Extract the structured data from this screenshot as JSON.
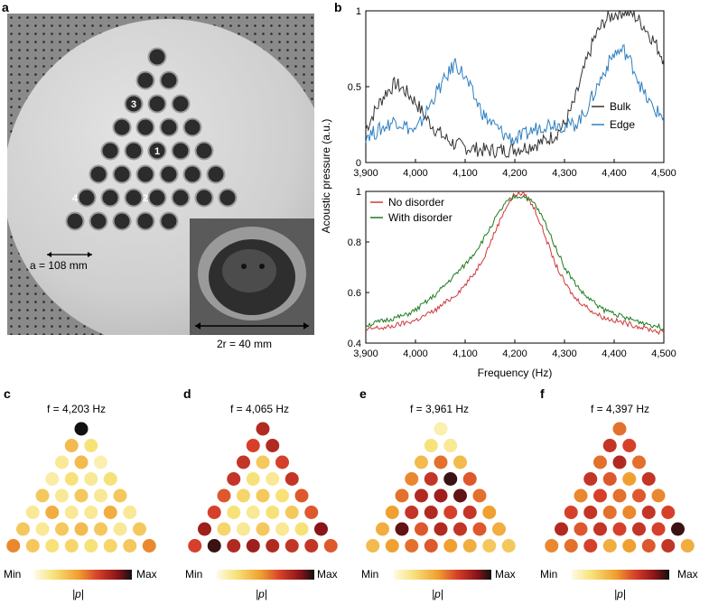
{
  "panels": {
    "a": {
      "label": "a",
      "spacing_label": "a = 108 mm",
      "diameter_label": "2r = 40 mm",
      "numbers": [
        "1",
        "2",
        "3",
        "4"
      ]
    },
    "b": {
      "label": "b"
    },
    "c": {
      "label": "c",
      "title": "f = 4,203 Hz"
    },
    "d": {
      "label": "d",
      "title": "f = 4,065 Hz"
    },
    "e": {
      "label": "e",
      "title": "f = 3,961 Hz"
    },
    "f": {
      "label": "f",
      "title": "f = 4,397 Hz"
    }
  },
  "colorbar": {
    "min": "Min",
    "max": "Max",
    "quantity": "|p|"
  },
  "colors": {
    "bulk": "#333333",
    "edge": "#2f7fc1",
    "no_disorder": "#d0383a",
    "with_disorder": "#1f7a1f"
  },
  "chart_data": [
    {
      "type": "line",
      "panel": "b-top",
      "xlabel": "",
      "ylabel": "Acoustic pressure (a.u.)",
      "xlim": [
        3900,
        4500
      ],
      "ylim": [
        0,
        1
      ],
      "xticks": [
        "3,900",
        "4,000",
        "4,100",
        "4,200",
        "4,300",
        "4,400",
        "4,500"
      ],
      "yticks": [
        "0",
        "0.5",
        "1"
      ],
      "legend_position": "right",
      "series": [
        {
          "name": "Bulk",
          "x": [
            3900,
            3920,
            3940,
            3960,
            3980,
            4000,
            4020,
            4040,
            4060,
            4080,
            4100,
            4120,
            4140,
            4160,
            4180,
            4200,
            4220,
            4240,
            4260,
            4280,
            4300,
            4320,
            4340,
            4360,
            4380,
            4400,
            4420,
            4440,
            4460,
            4480,
            4500
          ],
          "values": [
            0.22,
            0.35,
            0.46,
            0.52,
            0.47,
            0.4,
            0.3,
            0.22,
            0.16,
            0.12,
            0.1,
            0.09,
            0.08,
            0.08,
            0.08,
            0.09,
            0.1,
            0.12,
            0.14,
            0.18,
            0.25,
            0.4,
            0.62,
            0.82,
            0.93,
            0.98,
            1.0,
            0.97,
            0.9,
            0.8,
            0.68
          ]
        },
        {
          "name": "Edge",
          "x": [
            3900,
            3920,
            3940,
            3960,
            3980,
            4000,
            4020,
            4040,
            4060,
            4080,
            4100,
            4120,
            4140,
            4160,
            4180,
            4200,
            4220,
            4240,
            4260,
            4280,
            4300,
            4320,
            4340,
            4360,
            4380,
            4400,
            4420,
            4440,
            4460,
            4480,
            4500
          ],
          "values": [
            0.18,
            0.2,
            0.24,
            0.28,
            0.24,
            0.2,
            0.32,
            0.45,
            0.55,
            0.66,
            0.56,
            0.42,
            0.3,
            0.24,
            0.18,
            0.15,
            0.18,
            0.22,
            0.25,
            0.26,
            0.24,
            0.25,
            0.32,
            0.46,
            0.6,
            0.72,
            0.74,
            0.62,
            0.45,
            0.35,
            0.3
          ]
        }
      ]
    },
    {
      "type": "line",
      "panel": "b-bottom",
      "xlabel": "Frequency (Hz)",
      "ylabel": "",
      "xlim": [
        3900,
        4500
      ],
      "ylim": [
        0.4,
        1
      ],
      "xticks": [
        "3,900",
        "4,000",
        "4,100",
        "4,200",
        "4,300",
        "4,400",
        "4,500"
      ],
      "yticks": [
        "0.4",
        "0.6",
        "0.8",
        "1"
      ],
      "legend_position": "top-left",
      "series": [
        {
          "name": "No disorder",
          "x": [
            3900,
            3920,
            3940,
            3960,
            3980,
            4000,
            4020,
            4040,
            4060,
            4080,
            4100,
            4120,
            4140,
            4160,
            4180,
            4200,
            4220,
            4240,
            4260,
            4280,
            4300,
            4320,
            4340,
            4360,
            4380,
            4400,
            4420,
            4440,
            4460,
            4480,
            4500
          ],
          "values": [
            0.45,
            0.46,
            0.46,
            0.47,
            0.48,
            0.49,
            0.51,
            0.53,
            0.56,
            0.59,
            0.63,
            0.68,
            0.75,
            0.84,
            0.93,
            0.99,
            0.99,
            0.93,
            0.83,
            0.72,
            0.64,
            0.58,
            0.55,
            0.52,
            0.5,
            0.49,
            0.48,
            0.47,
            0.46,
            0.45,
            0.44
          ]
        },
        {
          "name": "With disorder",
          "x": [
            3900,
            3920,
            3940,
            3960,
            3980,
            4000,
            4020,
            4040,
            4060,
            4080,
            4100,
            4120,
            4140,
            4160,
            4180,
            4200,
            4220,
            4240,
            4260,
            4280,
            4300,
            4320,
            4340,
            4360,
            4380,
            4400,
            4420,
            4440,
            4460,
            4480,
            4500
          ],
          "values": [
            0.47,
            0.48,
            0.49,
            0.5,
            0.51,
            0.53,
            0.56,
            0.59,
            0.63,
            0.67,
            0.71,
            0.76,
            0.82,
            0.89,
            0.95,
            0.98,
            0.98,
            0.95,
            0.88,
            0.79,
            0.7,
            0.64,
            0.59,
            0.56,
            0.53,
            0.52,
            0.5,
            0.49,
            0.48,
            0.47,
            0.46
          ]
        }
      ]
    },
    {
      "type": "heatmap",
      "panel": "c",
      "layout": "triangular lattice, 8 rows",
      "values": [
        [
          1.0
        ],
        [
          0.35,
          0.2
        ],
        [
          0.15,
          0.35,
          0.1
        ],
        [
          0.12,
          0.2,
          0.15,
          0.2
        ],
        [
          0.3,
          0.15,
          0.3,
          0.15,
          0.3
        ],
        [
          0.15,
          0.4,
          0.15,
          0.15,
          0.4,
          0.15
        ],
        [
          0.3,
          0.15,
          0.3,
          0.35,
          0.3,
          0.15,
          0.3
        ],
        [
          0.5,
          0.3,
          0.2,
          0.25,
          0.2,
          0.25,
          0.3,
          0.5
        ]
      ]
    },
    {
      "type": "heatmap",
      "panel": "d",
      "layout": "triangular lattice, 8 rows",
      "values": [
        [
          0.75
        ],
        [
          0.65,
          0.75
        ],
        [
          0.7,
          0.3,
          0.65
        ],
        [
          0.7,
          0.2,
          0.15,
          0.7
        ],
        [
          0.6,
          0.25,
          0.3,
          0.2,
          0.6
        ],
        [
          0.65,
          0.2,
          0.15,
          0.2,
          0.3,
          0.6
        ],
        [
          0.8,
          0.25,
          0.15,
          0.3,
          0.15,
          0.2,
          0.85
        ],
        [
          0.65,
          0.95,
          0.75,
          0.8,
          0.75,
          0.7,
          0.7,
          0.6
        ]
      ]
    },
    {
      "type": "heatmap",
      "panel": "e",
      "layout": "triangular lattice, 8 rows",
      "values": [
        [
          0.1
        ],
        [
          0.2,
          0.15
        ],
        [
          0.35,
          0.55,
          0.35
        ],
        [
          0.5,
          0.7,
          0.95,
          0.6
        ],
        [
          0.55,
          0.75,
          0.8,
          0.9,
          0.55
        ],
        [
          0.45,
          0.7,
          0.75,
          0.65,
          0.7,
          0.45
        ],
        [
          0.4,
          0.9,
          0.6,
          0.75,
          0.7,
          0.6,
          0.4
        ],
        [
          0.35,
          0.45,
          0.55,
          0.6,
          0.45,
          0.4,
          0.3,
          0.3
        ]
      ]
    },
    {
      "type": "heatmap",
      "panel": "f",
      "layout": "triangular lattice, 8 rows",
      "values": [
        [
          0.55
        ],
        [
          0.7,
          0.65
        ],
        [
          0.55,
          0.75,
          0.55
        ],
        [
          0.7,
          0.6,
          0.45,
          0.7
        ],
        [
          0.5,
          0.65,
          0.55,
          0.6,
          0.5
        ],
        [
          0.65,
          0.7,
          0.55,
          0.5,
          0.7,
          0.65
        ],
        [
          0.75,
          0.6,
          0.7,
          0.65,
          0.7,
          0.65,
          0.95
        ],
        [
          0.5,
          0.55,
          0.65,
          0.4,
          0.45,
          0.6,
          0.7,
          0.4
        ]
      ]
    }
  ]
}
